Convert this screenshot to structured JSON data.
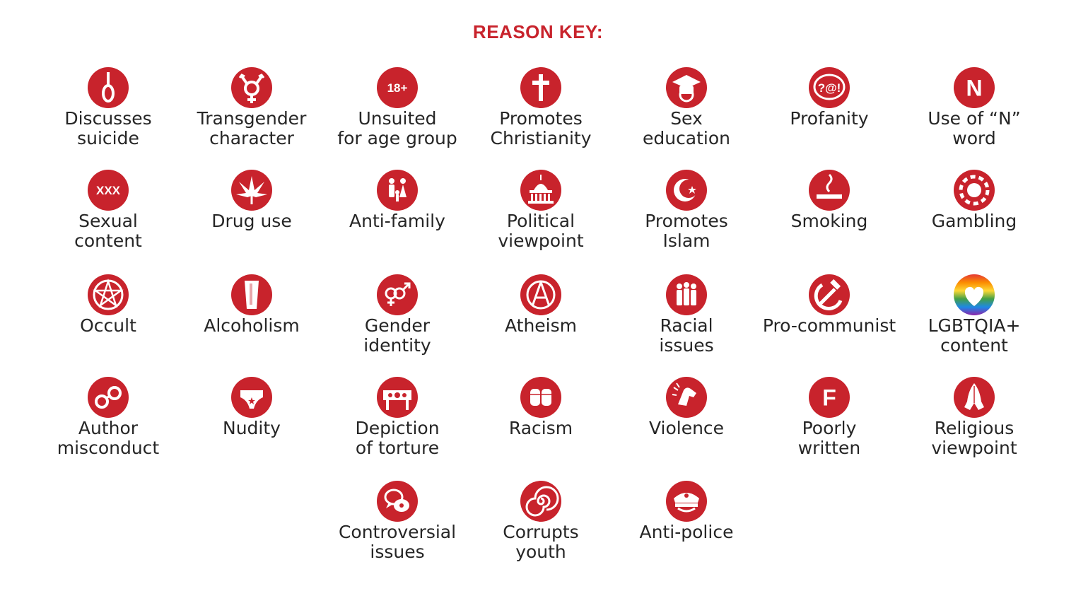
{
  "title": "REASON KEY:",
  "accent_color": "#c8232c",
  "items": [
    {
      "icon": "noose-icon",
      "lines": [
        "Discusses",
        "suicide"
      ]
    },
    {
      "icon": "transgender-symbol-icon",
      "lines": [
        "Transgender",
        "character"
      ]
    },
    {
      "icon": "eighteen-plus-icon",
      "glyph": "18+",
      "lines": [
        "Unsuited",
        "for age group"
      ]
    },
    {
      "icon": "cross-icon",
      "lines": [
        "Promotes",
        "Christianity"
      ]
    },
    {
      "icon": "graduation-cap-icon",
      "lines": [
        "Sex",
        "education"
      ]
    },
    {
      "icon": "speech-bubble-swear-icon",
      "glyph": "?@!",
      "lines": [
        "Profanity"
      ]
    },
    {
      "icon": "letter-n-icon",
      "glyph": "N",
      "lines": [
        "Use of “N”",
        "word"
      ]
    },
    {
      "icon": "xxx-icon",
      "glyph": "XXX",
      "lines": [
        "Sexual",
        "content"
      ]
    },
    {
      "icon": "cannabis-leaf-icon",
      "lines": [
        "Drug use"
      ]
    },
    {
      "icon": "family-icon",
      "lines": [
        "Anti-family"
      ]
    },
    {
      "icon": "capitol-building-icon",
      "lines": [
        "Political",
        "viewpoint"
      ]
    },
    {
      "icon": "crescent-star-icon",
      "lines": [
        "Promotes",
        "Islam"
      ]
    },
    {
      "icon": "cigarette-icon",
      "lines": [
        "Smoking"
      ]
    },
    {
      "icon": "poker-chip-icon",
      "lines": [
        "Gambling"
      ]
    },
    {
      "icon": "pentagram-icon",
      "lines": [
        "Occult"
      ]
    },
    {
      "icon": "beer-glass-icon",
      "lines": [
        "Alcoholism"
      ]
    },
    {
      "icon": "gender-symbols-icon",
      "lines": [
        "Gender",
        "identity"
      ]
    },
    {
      "icon": "atheism-symbol-icon",
      "lines": [
        "Atheism"
      ]
    },
    {
      "icon": "people-group-icon",
      "lines": [
        "Racial",
        "issues"
      ]
    },
    {
      "icon": "hammer-sickle-icon",
      "lines": [
        "Pro-communist"
      ]
    },
    {
      "icon": "rainbow-heart-icon",
      "lines": [
        "LGBTQIA+",
        "content"
      ]
    },
    {
      "icon": "handcuffs-icon",
      "lines": [
        "Author",
        "misconduct"
      ]
    },
    {
      "icon": "underwear-icon",
      "lines": [
        "Nudity"
      ]
    },
    {
      "icon": "stocks-torture-icon",
      "lines": [
        "Depiction",
        "of torture"
      ]
    },
    {
      "icon": "raised-fists-icon",
      "lines": [
        "Racism"
      ]
    },
    {
      "icon": "punch-icon",
      "lines": [
        "Violence"
      ]
    },
    {
      "icon": "letter-f-icon",
      "glyph": "F",
      "lines": [
        "Poorly",
        "written"
      ]
    },
    {
      "icon": "praying-hands-icon",
      "lines": [
        "Religious",
        "viewpoint"
      ]
    },
    {
      "icon": "speech-bubbles-icon",
      "lines": [
        "Controversial",
        "issues"
      ]
    },
    {
      "icon": "swirl-icon",
      "lines": [
        "Corrupts",
        "youth"
      ]
    },
    {
      "icon": "police-cap-icon",
      "lines": [
        "Anti-police"
      ]
    }
  ]
}
